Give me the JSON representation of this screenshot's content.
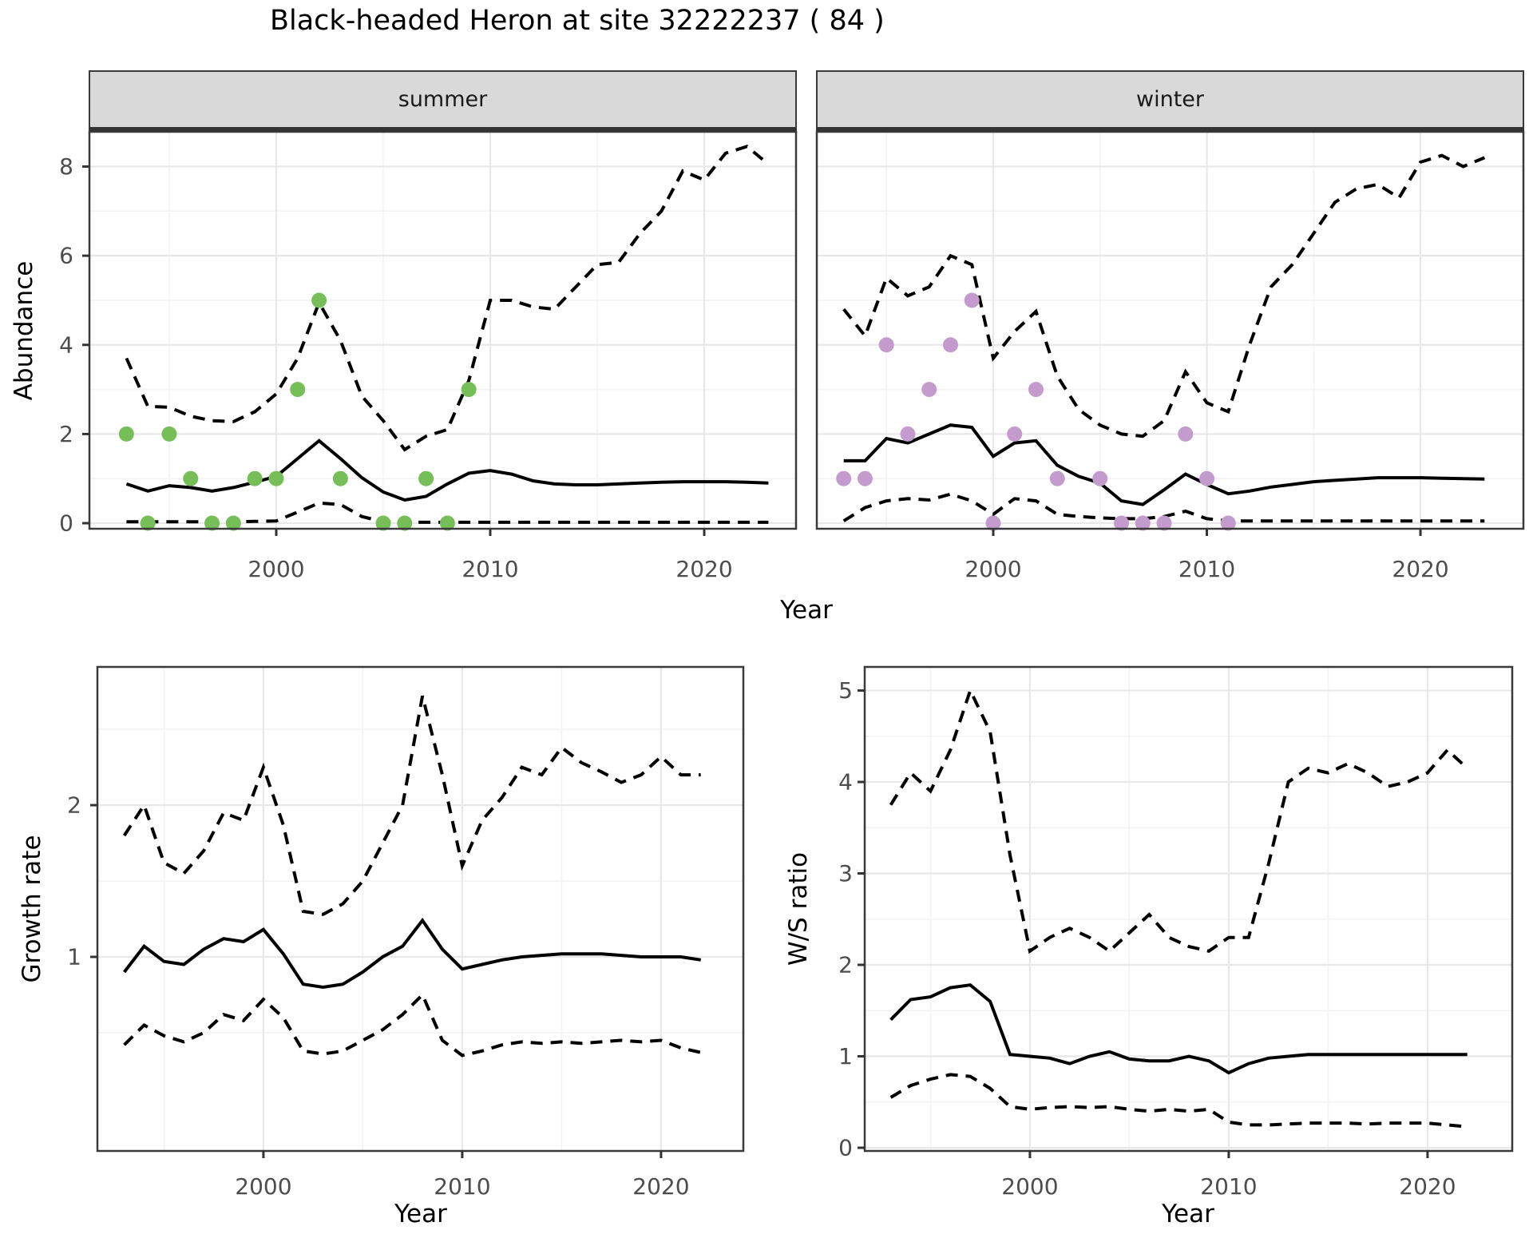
{
  "title": "Black-headed Heron at site 32222237 ( 84 )",
  "axis_labels": {
    "abundance": "Abundance",
    "growth": "Growth rate",
    "ws": "W/S ratio",
    "year": "Year"
  },
  "facet_labels": {
    "summer": "summer",
    "winter": "winter"
  },
  "colors": {
    "summer_points": "#76be58",
    "winter_points": "#c49bcd",
    "line": "#000000",
    "grid_major": "#e8e8e8",
    "grid_minor": "#f3f3f3",
    "panel_border": "#3a3a3a",
    "strip_fill": "#d9d9d9",
    "strip_text": "#1a1a1a",
    "tick_label": "#4d4d4d",
    "axis_label": "#000000"
  },
  "chart_data": [
    {
      "id": "abundance-summer",
      "type": "line",
      "facet": "summer",
      "title": "",
      "xlabel": "Year",
      "ylabel": "Abundance",
      "xlim": [
        1991.27,
        2024.29
      ],
      "ylim": [
        -0.125,
        8.78
      ],
      "xticks": [
        2000,
        2010,
        2020
      ],
      "yticks": [
        0,
        2,
        4,
        6,
        8
      ],
      "x": [
        1993,
        1994,
        1995,
        1996,
        1997,
        1998,
        1999,
        2000,
        2001,
        2002,
        2003,
        2004,
        2005,
        2006,
        2007,
        2008,
        2009,
        2010,
        2011,
        2012,
        2013,
        2014,
        2015,
        2016,
        2017,
        2018,
        2019,
        2020,
        2021,
        2022,
        2023
      ],
      "series": [
        {
          "name": "median",
          "style": "solid",
          "values": [
            0.88,
            0.72,
            0.84,
            0.8,
            0.72,
            0.8,
            0.92,
            1.05,
            1.45,
            1.85,
            1.45,
            1.02,
            0.7,
            0.52,
            0.6,
            0.88,
            1.12,
            1.18,
            1.1,
            0.95,
            0.88,
            0.86,
            0.86,
            0.88,
            0.9,
            0.92,
            0.93,
            0.93,
            0.93,
            0.92,
            0.9
          ]
        },
        {
          "name": "upper_ci",
          "style": "dashed",
          "values": [
            3.7,
            2.62,
            2.6,
            2.4,
            2.3,
            2.28,
            2.5,
            2.9,
            3.7,
            4.95,
            4.1,
            2.85,
            2.3,
            1.65,
            1.95,
            2.1,
            3.2,
            5.0,
            5.0,
            4.85,
            4.8,
            5.3,
            5.8,
            5.85,
            6.5,
            7.0,
            7.9,
            7.7,
            8.3,
            8.45,
            8.05
          ]
        },
        {
          "name": "lower_ci",
          "style": "dashed",
          "values": [
            0.03,
            0.03,
            0.03,
            0.03,
            0.03,
            0.03,
            0.04,
            0.05,
            0.25,
            0.45,
            0.42,
            0.15,
            0.03,
            0.02,
            0.02,
            0.02,
            0.02,
            0.02,
            0.02,
            0.02,
            0.02,
            0.02,
            0.02,
            0.02,
            0.02,
            0.02,
            0.02,
            0.02,
            0.02,
            0.02,
            0.02
          ]
        }
      ],
      "points": [
        [
          1993,
          2
        ],
        [
          1994,
          0
        ],
        [
          1995,
          2
        ],
        [
          1996,
          1
        ],
        [
          1997,
          0
        ],
        [
          1998,
          0
        ],
        [
          1999,
          1
        ],
        [
          2000,
          1
        ],
        [
          2001,
          3
        ],
        [
          2002,
          5
        ],
        [
          2003,
          1
        ],
        [
          2005,
          0
        ],
        [
          2006,
          0
        ],
        [
          2007,
          1
        ],
        [
          2008,
          0
        ],
        [
          2009,
          3
        ]
      ],
      "point_color": "#76be58"
    },
    {
      "id": "abundance-winter",
      "type": "line",
      "facet": "winter",
      "title": "",
      "xlabel": "Year",
      "ylabel": "Abundance",
      "xlim": [
        1991.74,
        2024.82
      ],
      "ylim": [
        -0.125,
        8.78
      ],
      "xticks": [
        2000,
        2010,
        2020
      ],
      "yticks": [
        0,
        2,
        4,
        6,
        8
      ],
      "x": [
        1993,
        1994,
        1995,
        1996,
        1997,
        1998,
        1999,
        2000,
        2001,
        2002,
        2003,
        2004,
        2005,
        2006,
        2007,
        2008,
        2009,
        2010,
        2011,
        2012,
        2013,
        2014,
        2015,
        2016,
        2017,
        2018,
        2019,
        2020,
        2021,
        2022,
        2023
      ],
      "series": [
        {
          "name": "median",
          "style": "solid",
          "values": [
            1.4,
            1.4,
            1.9,
            1.8,
            2.0,
            2.2,
            2.15,
            1.5,
            1.8,
            1.85,
            1.3,
            1.05,
            0.9,
            0.5,
            0.42,
            0.75,
            1.1,
            0.87,
            0.66,
            0.72,
            0.81,
            0.87,
            0.93,
            0.96,
            0.99,
            1.02,
            1.02,
            1.02,
            1.01,
            1.0,
            0.99
          ]
        },
        {
          "name": "upper_ci",
          "style": "dashed",
          "values": [
            4.8,
            4.2,
            5.5,
            5.1,
            5.3,
            6.0,
            5.8,
            3.7,
            4.3,
            4.75,
            3.3,
            2.55,
            2.2,
            2.0,
            1.95,
            2.3,
            3.4,
            2.7,
            2.5,
            4.0,
            5.3,
            5.8,
            6.5,
            7.2,
            7.5,
            7.6,
            7.3,
            8.1,
            8.25,
            8.0,
            8.2
          ]
        },
        {
          "name": "lower_ci",
          "style": "dashed",
          "values": [
            0.05,
            0.35,
            0.5,
            0.55,
            0.52,
            0.65,
            0.5,
            0.2,
            0.55,
            0.5,
            0.2,
            0.15,
            0.12,
            0.1,
            0.1,
            0.15,
            0.27,
            0.1,
            0.05,
            0.05,
            0.05,
            0.05,
            0.05,
            0.05,
            0.05,
            0.05,
            0.05,
            0.05,
            0.05,
            0.05,
            0.05
          ]
        }
      ],
      "points": [
        [
          1993,
          1
        ],
        [
          1994,
          1
        ],
        [
          1995,
          4
        ],
        [
          1996,
          2
        ],
        [
          1997,
          3
        ],
        [
          1998,
          4
        ],
        [
          1999,
          5
        ],
        [
          2000,
          0
        ],
        [
          2001,
          2
        ],
        [
          2002,
          3
        ],
        [
          2003,
          1
        ],
        [
          2005,
          1
        ],
        [
          2006,
          0
        ],
        [
          2007,
          0
        ],
        [
          2008,
          0
        ],
        [
          2009,
          2
        ],
        [
          2010,
          1
        ],
        [
          2011,
          0
        ]
      ],
      "point_color": "#c49bcd"
    },
    {
      "id": "growth",
      "type": "line",
      "facet": "",
      "title": "",
      "xlabel": "Year",
      "ylabel": "Growth rate",
      "xlim": [
        1991.65,
        2024.14
      ],
      "ylim": [
        -0.279,
        2.911
      ],
      "xticks": [
        2000,
        2010,
        2020
      ],
      "yticks": [
        1,
        2
      ],
      "x": [
        1993,
        1994,
        1995,
        1996,
        1997,
        1998,
        1999,
        2000,
        2001,
        2002,
        2003,
        2004,
        2005,
        2006,
        2007,
        2008,
        2009,
        2010,
        2011,
        2012,
        2013,
        2014,
        2015,
        2016,
        2017,
        2018,
        2019,
        2020,
        2021,
        2022
      ],
      "series": [
        {
          "name": "median",
          "style": "solid",
          "values": [
            0.9,
            1.07,
            0.97,
            0.95,
            1.05,
            1.12,
            1.1,
            1.18,
            1.02,
            0.82,
            0.8,
            0.82,
            0.9,
            1.0,
            1.07,
            1.24,
            1.05,
            0.92,
            0.95,
            0.98,
            1.0,
            1.01,
            1.02,
            1.02,
            1.02,
            1.01,
            1.0,
            1.0,
            1.0,
            0.98
          ]
        },
        {
          "name": "upper_ci",
          "style": "dashed",
          "values": [
            1.8,
            2.0,
            1.62,
            1.55,
            1.7,
            1.95,
            1.9,
            2.25,
            1.87,
            1.3,
            1.28,
            1.35,
            1.5,
            1.75,
            2.0,
            2.72,
            2.2,
            1.6,
            1.9,
            2.05,
            2.25,
            2.2,
            2.38,
            2.28,
            2.22,
            2.15,
            2.2,
            2.32,
            2.2,
            2.2
          ]
        },
        {
          "name": "lower_ci",
          "style": "dashed",
          "values": [
            0.42,
            0.55,
            0.48,
            0.44,
            0.5,
            0.62,
            0.58,
            0.72,
            0.6,
            0.38,
            0.36,
            0.38,
            0.45,
            0.52,
            0.62,
            0.75,
            0.45,
            0.35,
            0.38,
            0.42,
            0.44,
            0.43,
            0.44,
            0.43,
            0.44,
            0.45,
            0.44,
            0.45,
            0.4,
            0.37
          ]
        }
      ],
      "points": [],
      "point_color": ""
    },
    {
      "id": "ws",
      "type": "line",
      "facet": "",
      "title": "",
      "xlabel": "Year",
      "ylabel": "W/S ratio",
      "xlim": [
        1991.69,
        2024.26
      ],
      "ylim": [
        -0.035,
        5.258
      ],
      "xticks": [
        2000,
        2010,
        2020
      ],
      "yticks": [
        0,
        1,
        2,
        3,
        4,
        5
      ],
      "x": [
        1993,
        1994,
        1995,
        1996,
        1997,
        1998,
        1999,
        2000,
        2001,
        2002,
        2003,
        2004,
        2005,
        2006,
        2007,
        2008,
        2009,
        2010,
        2011,
        2012,
        2013,
        2014,
        2015,
        2016,
        2017,
        2018,
        2019,
        2020,
        2021,
        2022
      ],
      "series": [
        {
          "name": "median",
          "style": "solid",
          "values": [
            1.4,
            1.62,
            1.65,
            1.75,
            1.78,
            1.6,
            1.02,
            1.0,
            0.98,
            0.92,
            1.0,
            1.05,
            0.97,
            0.95,
            0.95,
            1.0,
            0.95,
            0.82,
            0.92,
            0.98,
            1.0,
            1.02,
            1.02,
            1.02,
            1.02,
            1.02,
            1.02,
            1.02,
            1.02,
            1.02
          ]
        },
        {
          "name": "upper_ci",
          "style": "dashed",
          "values": [
            3.75,
            4.1,
            3.9,
            4.35,
            5.0,
            4.55,
            3.2,
            2.15,
            2.3,
            2.4,
            2.3,
            2.15,
            2.35,
            2.55,
            2.3,
            2.2,
            2.15,
            2.3,
            2.3,
            3.1,
            4.0,
            4.15,
            4.1,
            4.2,
            4.1,
            3.95,
            4.0,
            4.1,
            4.35,
            4.15
          ]
        },
        {
          "name": "lower_ci",
          "style": "dashed",
          "values": [
            0.55,
            0.68,
            0.75,
            0.8,
            0.78,
            0.65,
            0.45,
            0.42,
            0.44,
            0.45,
            0.44,
            0.45,
            0.42,
            0.4,
            0.42,
            0.4,
            0.42,
            0.28,
            0.25,
            0.25,
            0.26,
            0.27,
            0.27,
            0.27,
            0.26,
            0.27,
            0.27,
            0.27,
            0.25,
            0.23
          ]
        }
      ],
      "points": [],
      "point_color": ""
    }
  ]
}
